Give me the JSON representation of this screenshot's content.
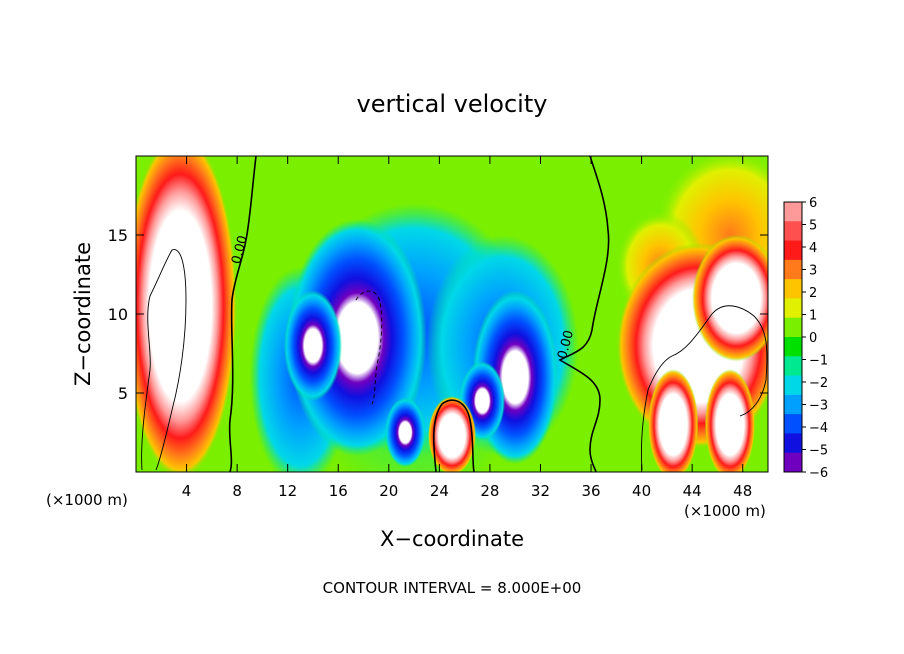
{
  "chart_data": {
    "type": "heatmap",
    "title": "vertical velocity",
    "xlabel": "X−coordinate",
    "ylabel": "Z−coordinate",
    "x_unit": "(×1000 m)",
    "y_unit": "(×1000 m)",
    "xlim": [
      0,
      50
    ],
    "ylim": [
      0,
      20
    ],
    "x_ticks": [
      4,
      8,
      12,
      16,
      20,
      24,
      28,
      32,
      36,
      40,
      44,
      48
    ],
    "y_ticks": [
      5,
      10,
      15
    ],
    "footer": "CONTOUR INTERVAL = 8.000E+00",
    "contour_labels": [
      {
        "text": "0.00",
        "x": 8.5,
        "z": 14
      },
      {
        "text": "0.00",
        "x": 34.3,
        "z": 8
      }
    ],
    "colorbar": {
      "min": -6,
      "max": 6,
      "tick_labels": [
        "6",
        "5",
        "4",
        "3",
        "2",
        "1",
        "0",
        "−1",
        "−2",
        "−3",
        "−4",
        "−5",
        "−6"
      ],
      "colors": [
        "#ff9a9a",
        "#ff5050",
        "#ff1a1a",
        "#ff7a1a",
        "#ffc400",
        "#e0f000",
        "#7aef00",
        "#00e000",
        "#00e890",
        "#00d8e8",
        "#00a0ff",
        "#0050ff",
        "#1010e0",
        "#7000c0"
      ]
    },
    "field_extremes": [
      {
        "kind": "high",
        "x": 4,
        "z": 10.5,
        "value": "6+"
      },
      {
        "kind": "high",
        "x": 25,
        "z": 2.3,
        "value": "6+"
      },
      {
        "kind": "high",
        "x": 44.5,
        "z": 8,
        "value": "6+"
      },
      {
        "kind": "low",
        "x": 17.5,
        "z": 8.5,
        "value": "-6"
      },
      {
        "kind": "low",
        "x": 30,
        "z": 6,
        "value": "-6"
      },
      {
        "kind": "low",
        "x": 14,
        "z": 8,
        "value": "-6"
      }
    ]
  }
}
